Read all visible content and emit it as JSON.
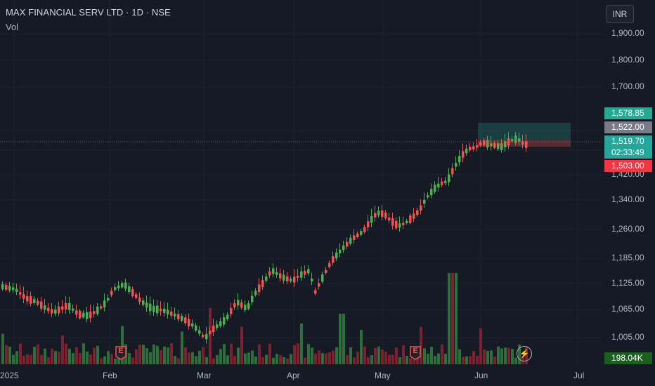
{
  "header": {
    "title": "MAX FINANCIAL SERV LTD · 1D · NSE",
    "volume_label": "Vol",
    "currency": "INR"
  },
  "price_axis": {
    "ticks": [
      "1,900.00",
      "1,800.00",
      "1,700.00",
      "1,420.00",
      "1,340.00",
      "1,260.00",
      "1,185.00",
      "1,125.00",
      "1,065.00",
      "1,005.00"
    ]
  },
  "time_axis": {
    "ticks": [
      "2025",
      "Feb",
      "Mar",
      "Apr",
      "May",
      "Jun",
      "Jul"
    ]
  },
  "labels": {
    "target": "1,578.85",
    "entry": "1,522.00",
    "last_price": "1,519.70",
    "countdown": "02:33:49",
    "stop": "1,503.00",
    "volume": "198.04K"
  },
  "events": [
    "E",
    "E"
  ],
  "colors": {
    "up": "#26a69a",
    "up_candle": "#4caf50",
    "down": "#ef5350",
    "up_volume": "#2d6e3a",
    "down_volume": "#7a2230",
    "target_label": "#22ab94",
    "entry_label": "#787b86",
    "stop_label": "#f23645",
    "volume_label": "#1b5e20"
  },
  "icons": [
    "lightning-icon",
    "earnings-icon"
  ]
}
